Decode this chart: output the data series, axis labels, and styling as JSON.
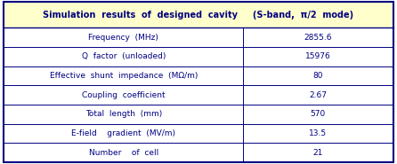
{
  "title": "Simulation  results  of  designed  cavity     (S-band,  π/2  mode)",
  "title_bg": "#FFFFCC",
  "header_text_color": "#000080",
  "body_text_color": "#000080",
  "rows": [
    [
      "Frequency  (MHz)",
      "2855.6"
    ],
    [
      "Q  factor  (unloaded)",
      "15976"
    ],
    [
      "Effective  shunt  impedance  (MΩ/m)",
      "80"
    ],
    [
      "Coupling  coefficient",
      "2.67"
    ],
    [
      "Total  length  (mm)",
      "570"
    ],
    [
      "E-field    gradient  (MV/m)",
      "13.5"
    ],
    [
      "Number    of  cell",
      "21"
    ]
  ],
  "col_split": 0.615,
  "border_color": "#000080",
  "figsize": [
    4.46,
    1.85
  ],
  "dpi": 100,
  "title_fontsize": 7.0,
  "body_fontsize": 6.5
}
